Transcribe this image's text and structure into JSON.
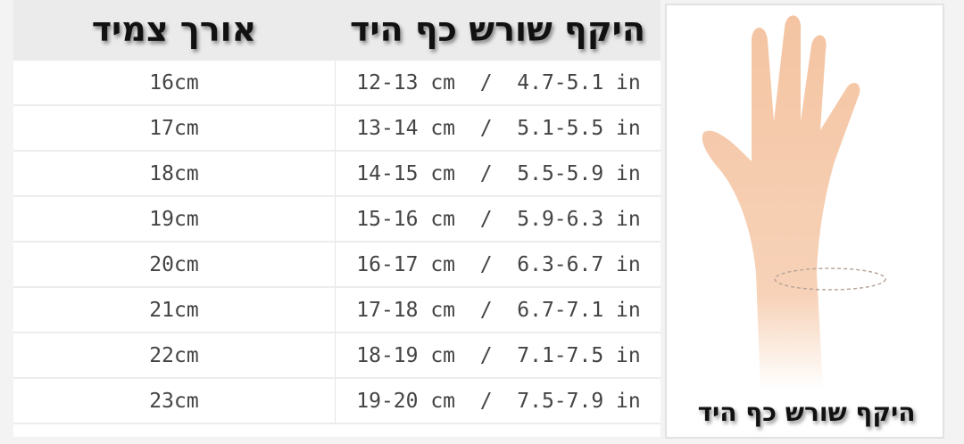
{
  "table": {
    "headers": [
      "אורך צמיד",
      "היקף שורש כף היד"
    ],
    "rows": [
      {
        "bracelet": "16cm",
        "wrist": "12-13 cm  /  4.7-5.1 in"
      },
      {
        "bracelet": "17cm",
        "wrist": "13-14 cm  /  5.1-5.5 in"
      },
      {
        "bracelet": "18cm",
        "wrist": "14-15 cm  /  5.5-5.9 in"
      },
      {
        "bracelet": "19cm",
        "wrist": "15-16 cm  /  5.9-6.3 in"
      },
      {
        "bracelet": "20cm",
        "wrist": "16-17 cm  /  6.3-6.7 in"
      },
      {
        "bracelet": "21cm",
        "wrist": "17-18 cm  /  6.7-7.1 in"
      },
      {
        "bracelet": "22cm",
        "wrist": "18-19 cm  /  7.1-7.5 in"
      },
      {
        "bracelet": "23cm",
        "wrist": "19-20 cm  /  7.5-7.9 in"
      }
    ]
  },
  "illustration": {
    "icon": "hand-wrist-measure-icon",
    "caption": "היקף שורש כף היד",
    "skin_color": "#f6c9a8"
  }
}
